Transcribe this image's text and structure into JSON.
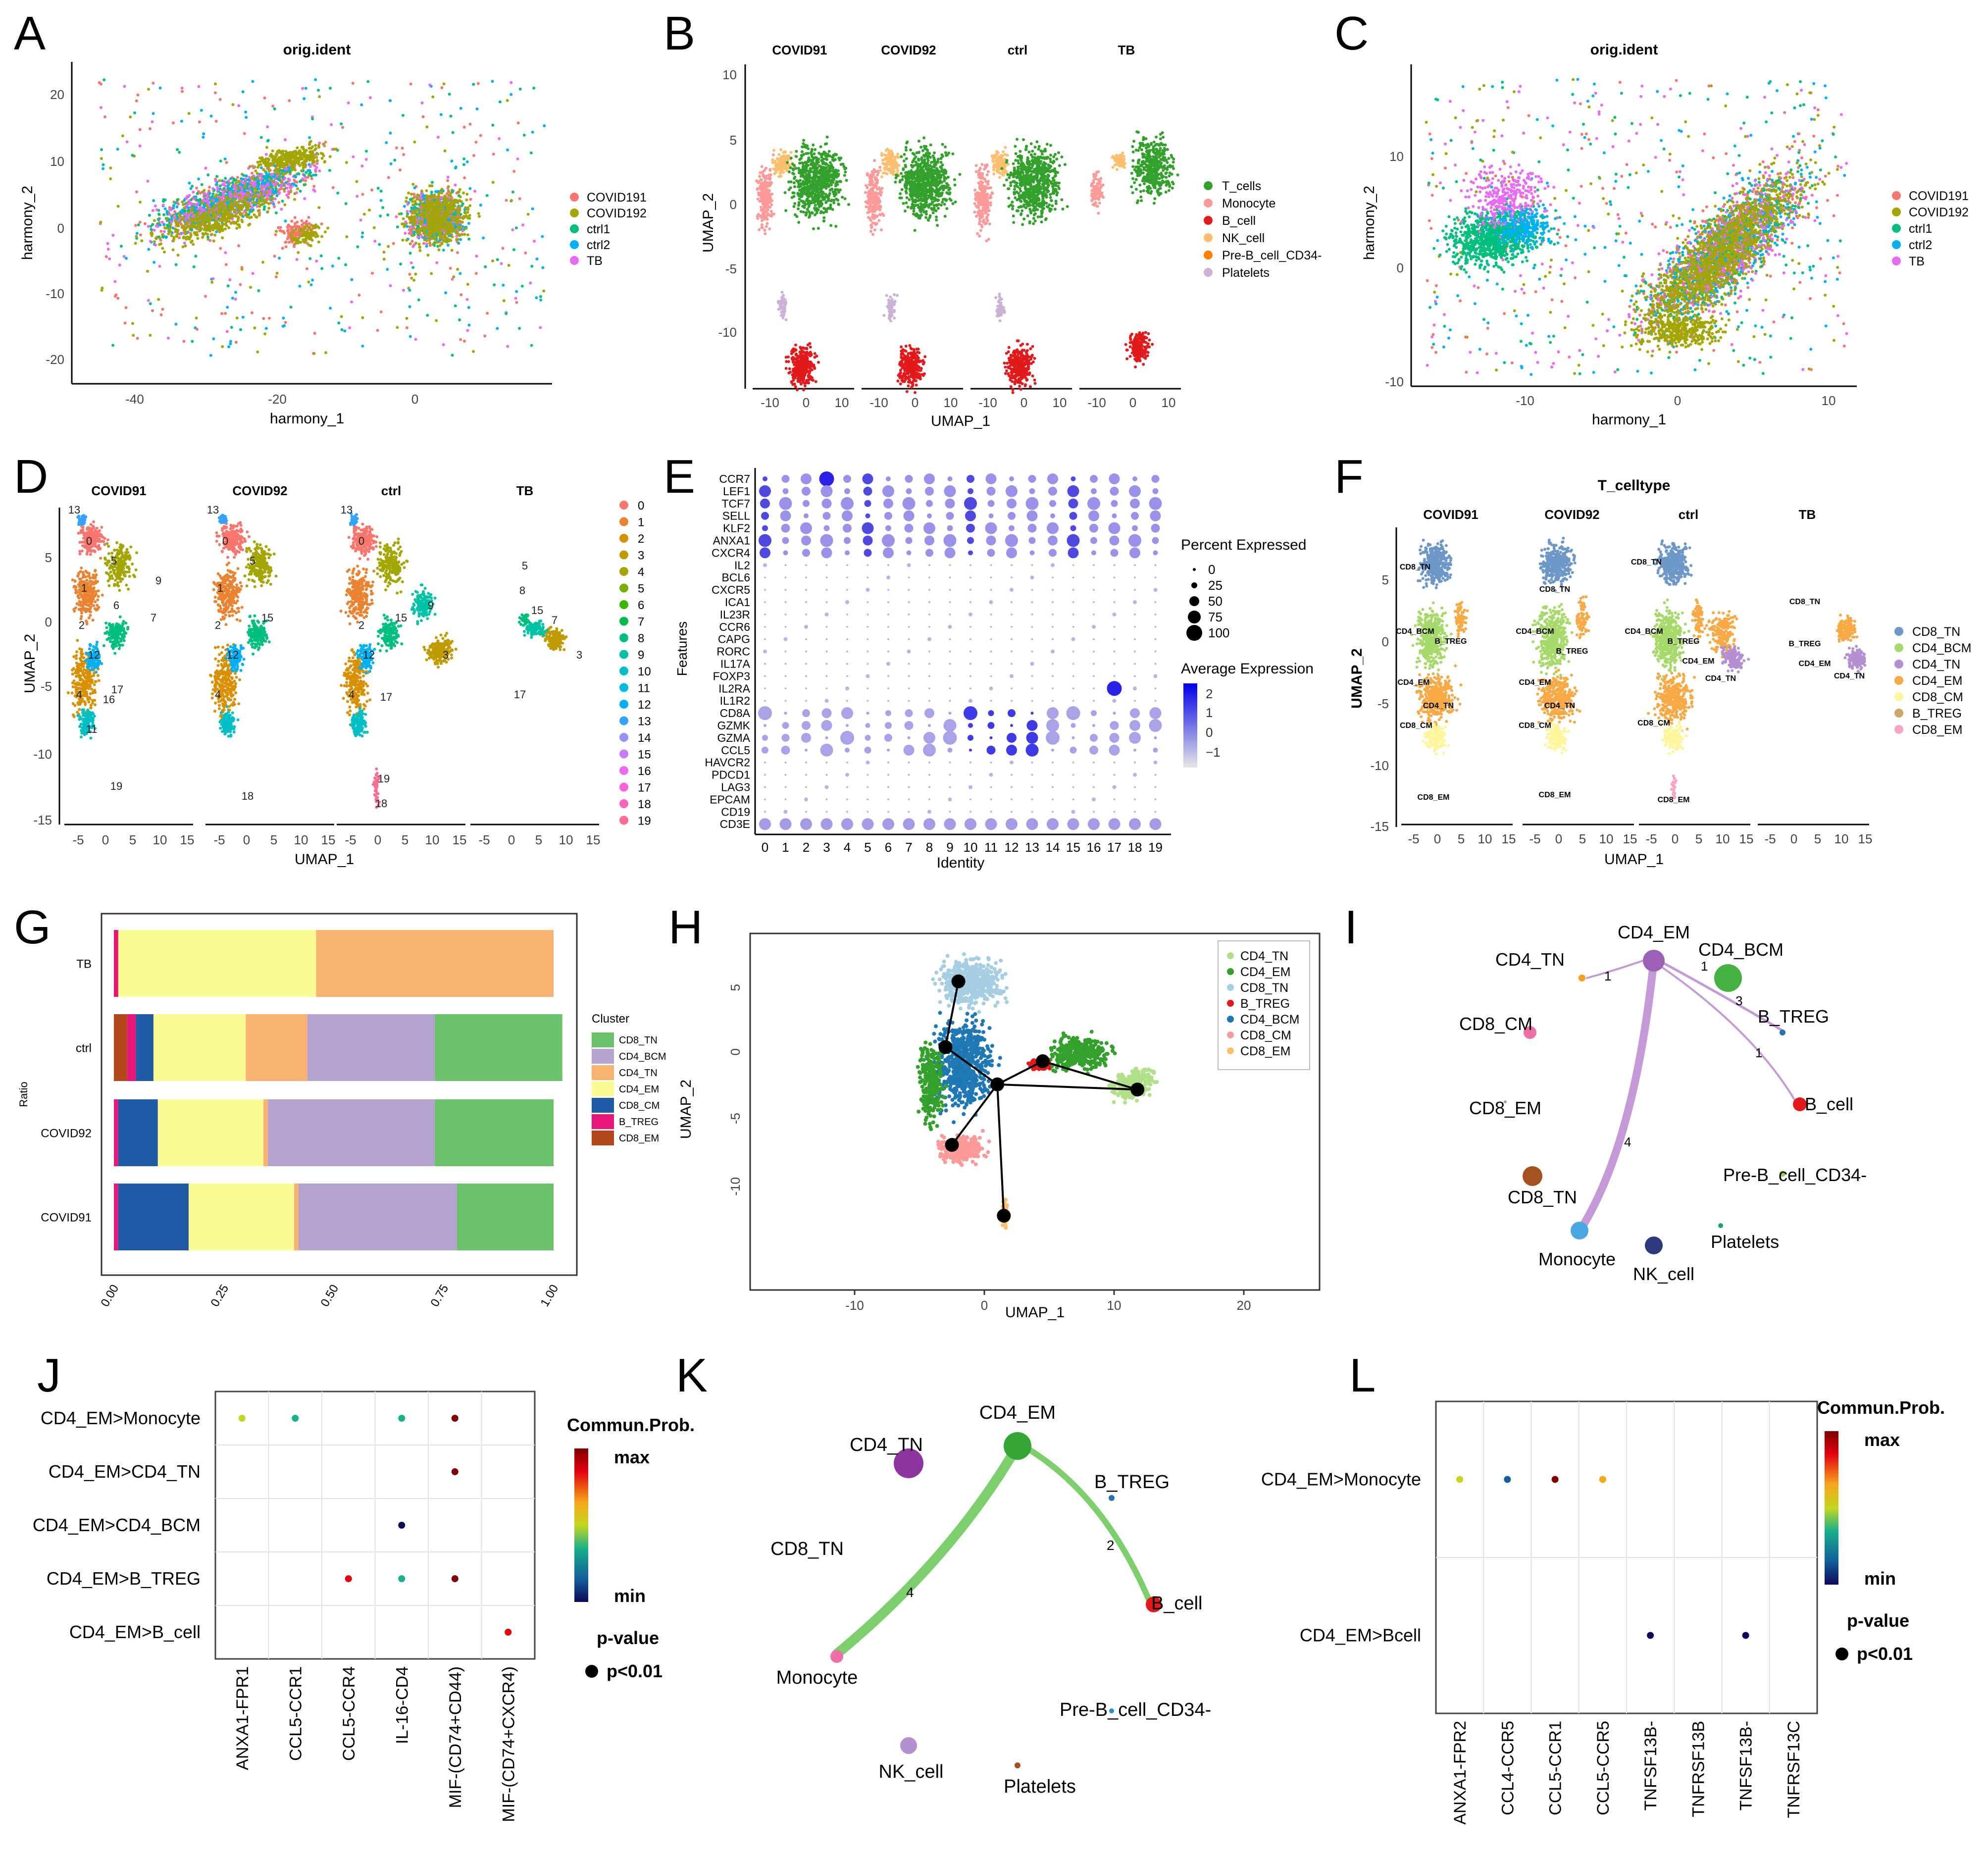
{
  "panel_letters": [
    "A",
    "B",
    "C",
    "D",
    "E",
    "F",
    "G",
    "H",
    "I",
    "J",
    "K",
    "L"
  ],
  "colors": {
    "COVID191": "#F8766D",
    "COVID192": "#A3A500",
    "ctrl1": "#00BF7D",
    "ctrl2": "#00B0F6",
    "TB": "#E76BF3",
    "T_cells": "#33a02c",
    "Monocyte": "#fb9a99",
    "B_cell": "#e31a1c",
    "NK_cell": "#fdbf6f",
    "Pre_B": "#ff7f00",
    "Platelets": "#cab2d6",
    "CD8_TN": "#6cc26a",
    "CD4_BCM": "#b3a4cf",
    "CD4_TN": "#f9b272",
    "CD4_EM": "#fbfb96",
    "CD8_CM": "#1f5aa6",
    "B_TREG": "#e7177a",
    "CD8_EM": "#b3481a"
  },
  "panel_A": {
    "title": "orig.ident",
    "xlabel": "harmony_1",
    "ylabel": "harmony_2",
    "x_ticks": [
      "-40",
      "-20",
      "0"
    ],
    "y_ticks": [
      "20",
      "10",
      "0",
      "-10",
      "-20"
    ],
    "legend": [
      "COVID191",
      "COVID192",
      "ctrl1",
      "ctrl2",
      "TB"
    ]
  },
  "panel_B": {
    "facets": [
      "COVID91",
      "COVID92",
      "ctrl",
      "TB"
    ],
    "xlabel": "UMAP_1",
    "ylabel": "UMAP_2",
    "y_ticks": [
      "10",
      "5",
      "0",
      "-5",
      "-10"
    ],
    "x_ticks": [
      "-10",
      "0",
      "10"
    ],
    "legend": [
      "T_cells",
      "Monocyte",
      "B_cell",
      "NK_cell",
      "Pre-B_cell_CD34-",
      "Platelets"
    ]
  },
  "panel_C": {
    "title": "orig.ident",
    "xlabel": "harmony_1",
    "ylabel": "harmony_2",
    "x_ticks": [
      "-10",
      "0",
      "10"
    ],
    "y_ticks": [
      "10",
      "0",
      "-10"
    ],
    "legend": [
      "COVID191",
      "COVID192",
      "ctrl1",
      "ctrl2",
      "TB"
    ]
  },
  "panel_D": {
    "facets": [
      "COVID91",
      "COVID92",
      "ctrl",
      "TB"
    ],
    "xlabel": "UMAP_1",
    "ylabel": "UMAP_2",
    "y_ticks": [
      "5",
      "0",
      "-5",
      "-10",
      "-15"
    ],
    "x_ticks": [
      "-5",
      "0",
      "5",
      "10",
      "15"
    ],
    "legend": [
      "0",
      "1",
      "2",
      "3",
      "4",
      "5",
      "6",
      "7",
      "8",
      "9",
      "10",
      "11",
      "12",
      "13",
      "14",
      "15",
      "16",
      "17",
      "18",
      "19"
    ],
    "cluster_colors": [
      "#F8766D",
      "#EA8331",
      "#D89000",
      "#C09B00",
      "#A3A500",
      "#7CAE00",
      "#39B600",
      "#00BB4E",
      "#00BF7D",
      "#00C1A3",
      "#00BFC4",
      "#00BAE0",
      "#00B0F6",
      "#35A2FF",
      "#9590FF",
      "#C77CFF",
      "#E76BF3",
      "#FA62DB",
      "#FF62BC",
      "#FF6C91"
    ]
  },
  "panel_E": {
    "ylabel": "Features",
    "xlabel": "Identity",
    "features": [
      "CCR7",
      "LEF1",
      "TCF7",
      "SELL",
      "KLF2",
      "ANXA1",
      "CXCR4",
      "IL2",
      "BCL6",
      "CXCR5",
      "ICA1",
      "IL23R",
      "CCR6",
      "CAPG",
      "RORC",
      "IL17A",
      "FOXP3",
      "IL2RA",
      "IL1R2",
      "CD8A",
      "GZMK",
      "GZMA",
      "CCL5",
      "HAVCR2",
      "PDCD1",
      "LAG3",
      "EPCAM",
      "CD19",
      "CD3E"
    ],
    "identities": [
      "0",
      "1",
      "2",
      "3",
      "4",
      "5",
      "6",
      "7",
      "8",
      "9",
      "10",
      "11",
      "12",
      "13",
      "14",
      "15",
      "16",
      "17",
      "18",
      "19"
    ],
    "legend_pct_title": "Percent Expressed",
    "legend_pct": [
      "0",
      "25",
      "50",
      "75",
      "100"
    ],
    "legend_avg_title": "Average Expression",
    "legend_avg": [
      "2",
      "1",
      "0",
      "−1"
    ]
  },
  "panel_F": {
    "title": "T_celltype",
    "facets": [
      "COVID91",
      "COVID92",
      "ctrl",
      "TB"
    ],
    "xlabel": "UMAP_1",
    "ylabel": "UMAP_2",
    "y_ticks": [
      "5",
      "0",
      "-5",
      "-10",
      "-15"
    ],
    "x_ticks": [
      "-5",
      "0",
      "5",
      "10",
      "15"
    ],
    "legend": [
      "CD8_TN",
      "CD4_BCM",
      "CD4_TN",
      "CD4_EM",
      "CD8_CM",
      "B_TREG",
      "CD8_EM"
    ],
    "labels": [
      "CD8_TN",
      "CD8_TN",
      "CD4_BCM",
      "B_TREG",
      "CD4_EM",
      "CD4_TN",
      "CD8_CM",
      "CD8_EM",
      "CD4_EM",
      "CD4_TN"
    ]
  },
  "chart_data": [
    {
      "type": "bar",
      "orientation": "horizontal",
      "stacked": true,
      "panel": "G",
      "xlabel": "",
      "ylabel": "Ratio",
      "categories": [
        "TB",
        "ctrl",
        "COVID92",
        "COVID91"
      ],
      "x_ticks": [
        "0.00",
        "0.25",
        "0.50",
        "0.75",
        "1.00"
      ],
      "legend_title": "Cluster",
      "legend": [
        "CD8_TN",
        "CD4_BCM",
        "CD4_TN",
        "CD4_EM",
        "CD8_CM",
        "B_TREG",
        "CD8_EM"
      ],
      "series": [
        {
          "name": "CD8_EM",
          "values": [
            0.0,
            0.03,
            0.0,
            0.0
          ]
        },
        {
          "name": "B_TREG",
          "values": [
            0.01,
            0.02,
            0.01,
            0.01
          ]
        },
        {
          "name": "CD8_CM",
          "values": [
            0.0,
            0.04,
            0.09,
            0.16
          ]
        },
        {
          "name": "CD4_EM",
          "values": [
            0.45,
            0.21,
            0.24,
            0.24
          ]
        },
        {
          "name": "CD4_TN",
          "values": [
            0.54,
            0.14,
            0.01,
            0.01
          ]
        },
        {
          "name": "CD4_BCM",
          "values": [
            0.0,
            0.29,
            0.38,
            0.36
          ]
        },
        {
          "name": "CD8_TN",
          "values": [
            0.0,
            0.29,
            0.27,
            0.22
          ]
        }
      ]
    },
    {
      "type": "scatter",
      "panel": "J",
      "title": "Commun.Prob.",
      "rows": [
        "CD4_EM>Monocyte",
        "CD4_EM>CD4_TN",
        "CD4_EM>CD4_BCM",
        "CD4_EM>B_TREG",
        "CD4_EM>B_cell"
      ],
      "columns": [
        "ANXA1-FPR1",
        "CCL5-CCR1",
        "CCL5-CCR4",
        "IL-16-CD4",
        "MIF-(CD74+CD44)",
        "MIF-(CD74+CXCR4)"
      ],
      "points": [
        {
          "row": 0,
          "col": 0,
          "prob": 0.55
        },
        {
          "row": 0,
          "col": 1,
          "prob": 0.25
        },
        {
          "row": 0,
          "col": 3,
          "prob": 0.25
        },
        {
          "row": 0,
          "col": 4,
          "prob": 0.95
        },
        {
          "row": 1,
          "col": 4,
          "prob": 0.97
        },
        {
          "row": 2,
          "col": 3,
          "prob": 0.05
        },
        {
          "row": 3,
          "col": 2,
          "prob": 0.85
        },
        {
          "row": 3,
          "col": 3,
          "prob": 0.25
        },
        {
          "row": 3,
          "col": 4,
          "prob": 0.95
        },
        {
          "row": 4,
          "col": 5,
          "prob": 0.8
        }
      ],
      "scale_max": "max",
      "scale_min": "min",
      "pvalue_title": "p-value",
      "pvalue_label": "p<0.01"
    },
    {
      "type": "scatter",
      "panel": "L",
      "title": "Commun.Prob.",
      "rows": [
        "CD4_EM>Monocyte",
        "CD4_EM>Bcell"
      ],
      "columns": [
        "ANXA1-FPR2",
        "CCL4-CCR5",
        "CCL5-CCR1",
        "CCL5-CCR5",
        "TNFSF13B-",
        "TNFRSF13B",
        "TNFSF13B-",
        "TNFRSF13C"
      ],
      "points": [
        {
          "row": 0,
          "col": 0,
          "prob": 0.55
        },
        {
          "row": 0,
          "col": 1,
          "prob": 0.1
        },
        {
          "row": 0,
          "col": 2,
          "prob": 0.95
        },
        {
          "row": 0,
          "col": 3,
          "prob": 0.7
        },
        {
          "row": 1,
          "col": 4,
          "prob": 0.05
        },
        {
          "row": 1,
          "col": 6,
          "prob": 0.05
        }
      ],
      "scale_max": "max",
      "scale_min": "min",
      "pvalue_title": "p-value",
      "pvalue_label": "p<0.01"
    },
    {
      "type": "line",
      "panel": "H",
      "xlabel": "UMAP_1",
      "ylabel": "UMAP_2",
      "x_ticks": [
        "-10",
        "0",
        "10",
        "20"
      ],
      "y_ticks": [
        "5",
        "0",
        "-5",
        "-10"
      ],
      "legend": [
        "CD4_TN",
        "CD4_EM",
        "CD8_TN",
        "B_TREG",
        "CD4_BCM",
        "CD8_CM",
        "CD8_EM"
      ],
      "legend_colors": [
        "#b2df8a",
        "#33a02c",
        "#a6cee3",
        "#e31a1c",
        "#1f78b4",
        "#fb9a99",
        "#fdbf6f"
      ],
      "nodes": [
        {
          "x": -2,
          "y": 5.7
        },
        {
          "x": -3,
          "y": 0.6
        },
        {
          "x": 1,
          "y": -2.3
        },
        {
          "x": -2.5,
          "y": -7
        },
        {
          "x": 4.5,
          "y": -0.5
        },
        {
          "x": 11.8,
          "y": -2.7
        },
        {
          "x": 1.5,
          "y": -12.5
        }
      ],
      "edges": [
        [
          0,
          1
        ],
        [
          1,
          2
        ],
        [
          2,
          3
        ],
        [
          2,
          4
        ],
        [
          4,
          5
        ],
        [
          2,
          5
        ],
        [
          2,
          6
        ]
      ]
    }
  ],
  "panel_I": {
    "nodes": [
      "CD4_EM",
      "CD4_TN",
      "CD4_BCM",
      "B_TREG",
      "CD8_CM",
      "CD8_EM",
      "CD8_TN",
      "B_cell",
      "Pre-B_cell_CD34-",
      "Monocyte",
      "NK_cell",
      "Platelets"
    ],
    "edge_labels": [
      "1",
      "1",
      "3",
      "1",
      "4"
    ]
  },
  "panel_K": {
    "nodes": [
      "CD4_EM",
      "CD4_TN",
      "B_TREG",
      "CD8_TN",
      "B_cell",
      "Monocyte",
      "Pre-B_cell_CD34-",
      "NK_cell",
      "Platelets"
    ],
    "edge_labels": [
      "4",
      "2"
    ]
  }
}
